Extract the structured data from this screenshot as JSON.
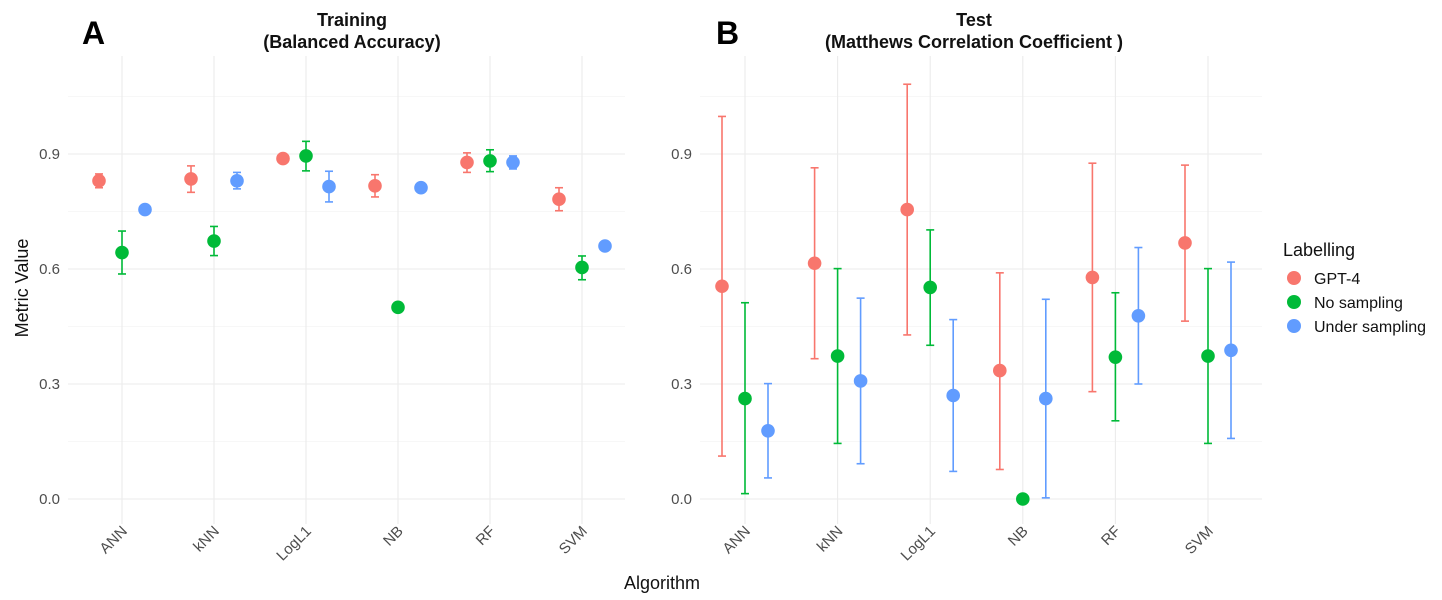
{
  "chart_data": [
    {
      "panel_letter": "A",
      "type": "scatter",
      "title": "Training\n(Balanced Accuracy)",
      "categories": [
        "ANN",
        "kNN",
        "LogL1",
        "NB",
        "RF",
        "SVM"
      ],
      "ylim": [
        -0.05,
        1.19
      ],
      "yticks": [
        "0.0",
        "0.3",
        "0.6",
        "0.9"
      ],
      "grid": true,
      "series": [
        {
          "name": "GPT-4",
          "color": "#F8766D",
          "values": [
            0.83,
            0.835,
            0.888,
            0.817,
            0.878,
            0.782
          ],
          "lower": [
            0.812,
            0.8,
            0.876,
            0.788,
            0.852,
            0.752
          ],
          "upper": [
            0.848,
            0.869,
            0.899,
            0.846,
            0.903,
            0.812
          ]
        },
        {
          "name": "No sampling",
          "color": "#00BA38",
          "values": [
            0.643,
            0.673,
            0.895,
            0.5,
            0.882,
            0.604
          ],
          "lower": [
            0.587,
            0.635,
            0.856,
            null,
            0.854,
            0.572
          ],
          "upper": [
            0.699,
            0.711,
            0.933,
            null,
            0.911,
            0.634
          ]
        },
        {
          "name": "Under sampling",
          "color": "#619CFF",
          "values": [
            0.755,
            0.83,
            0.815,
            0.812,
            0.878,
            0.66
          ],
          "lower": [
            null,
            0.809,
            0.775,
            null,
            0.861,
            null
          ],
          "upper": [
            null,
            0.852,
            0.855,
            null,
            0.895,
            null
          ]
        }
      ]
    },
    {
      "panel_letter": "B",
      "type": "scatter",
      "title": "Test\n(Matthews Correlation Coefficient )",
      "categories": [
        "ANN",
        "kNN",
        "LogL1",
        "NB",
        "RF",
        "SVM"
      ],
      "ylim": [
        -0.05,
        1.19
      ],
      "yticks": [
        "0.0",
        "0.3",
        "0.6",
        "0.9"
      ],
      "grid": true,
      "series": [
        {
          "name": "GPT-4",
          "color": "#F8766D",
          "values": [
            0.555,
            0.615,
            0.755,
            0.335,
            0.578,
            0.668
          ],
          "lower": [
            0.112,
            0.366,
            0.428,
            0.077,
            0.28,
            0.464
          ],
          "upper": [
            0.998,
            0.864,
            1.082,
            0.59,
            0.876,
            0.871
          ]
        },
        {
          "name": "No sampling",
          "color": "#00BA38",
          "values": [
            0.262,
            0.373,
            0.552,
            0.0,
            0.37,
            0.373
          ],
          "lower": [
            0.014,
            0.145,
            0.401,
            null,
            0.204,
            0.145
          ],
          "upper": [
            0.512,
            0.601,
            0.702,
            null,
            0.538,
            0.601
          ]
        },
        {
          "name": "Under sampling",
          "color": "#619CFF",
          "values": [
            0.178,
            0.308,
            0.27,
            0.262,
            0.478,
            0.388
          ],
          "lower": [
            0.055,
            0.092,
            0.072,
            0.003,
            0.3,
            0.158
          ],
          "upper": [
            0.301,
            0.524,
            0.468,
            0.521,
            0.656,
            0.618
          ]
        }
      ]
    }
  ],
  "axes": {
    "ylabel": "Metric Value",
    "xlabel": "Algorithm"
  },
  "legend": {
    "title": "Labelling",
    "items": [
      {
        "label": "GPT-4",
        "color": "#F8766D"
      },
      {
        "label": "No sampling",
        "color": "#00BA38"
      },
      {
        "label": "Under sampling",
        "color": "#619CFF"
      }
    ]
  }
}
